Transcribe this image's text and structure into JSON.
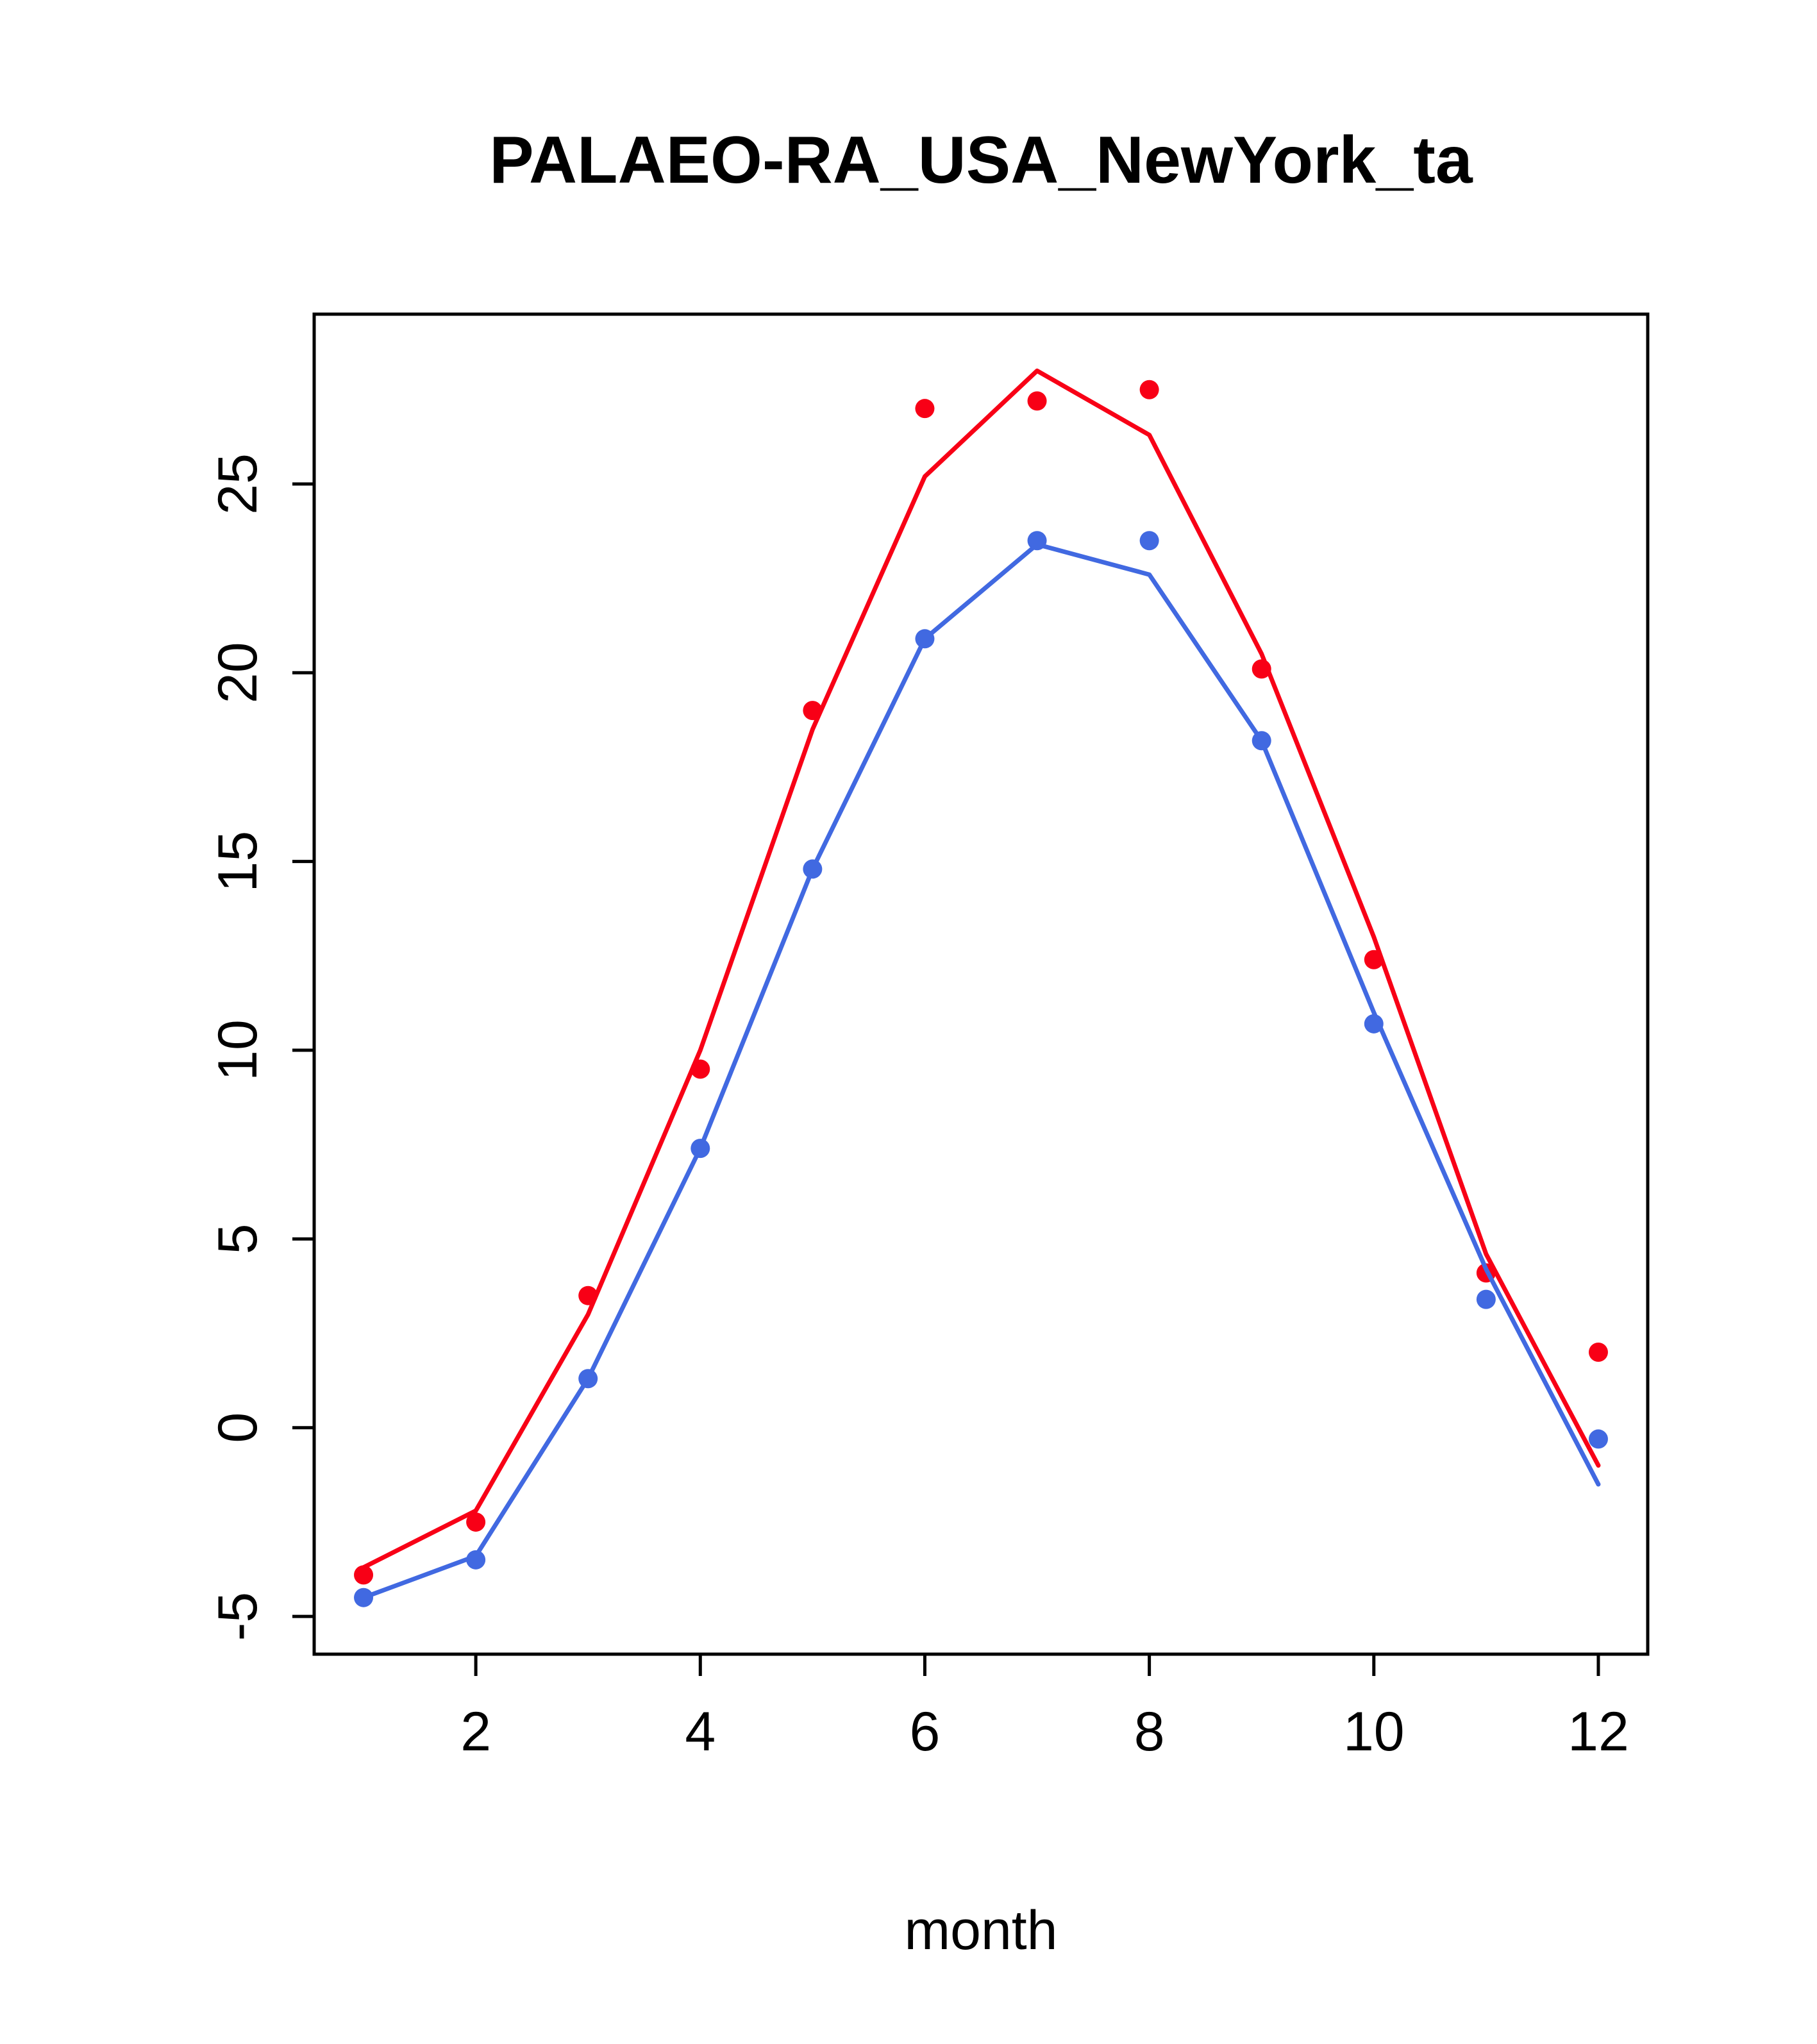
{
  "chart_data": {
    "type": "line",
    "title": "PALAEO-RA_USA_NewYork_ta",
    "xlabel": "month",
    "ylabel": "",
    "x": [
      1,
      2,
      3,
      4,
      5,
      6,
      7,
      8,
      9,
      10,
      11,
      12
    ],
    "xlim": [
      0.56,
      12.44
    ],
    "ylim": [
      -6,
      29.5
    ],
    "xticks": [
      2,
      4,
      6,
      8,
      10,
      12
    ],
    "yticks": [
      -5,
      0,
      5,
      10,
      15,
      20,
      25
    ],
    "grid": false,
    "legend": "none",
    "colors": {
      "red": "#F80016",
      "blue": "#4169E1",
      "axis": "#000000"
    },
    "series": [
      {
        "name": "red-line",
        "kind": "line",
        "color": "#F80016",
        "values": [
          -3.7,
          -2.2,
          3.0,
          10.0,
          18.5,
          25.2,
          28.0,
          26.3,
          20.5,
          13.0,
          4.6,
          -1.0
        ]
      },
      {
        "name": "red-points",
        "kind": "scatter",
        "color": "#F80016",
        "values": [
          -3.9,
          -2.5,
          3.5,
          9.5,
          19.0,
          27.0,
          27.2,
          27.5,
          20.1,
          12.4,
          4.1,
          2.0
        ]
      },
      {
        "name": "blue-line",
        "kind": "line",
        "color": "#4169E1",
        "values": [
          -4.5,
          -3.4,
          1.3,
          7.4,
          14.8,
          20.9,
          23.4,
          22.6,
          18.2,
          11.0,
          4.2,
          -1.5
        ]
      },
      {
        "name": "blue-points",
        "kind": "scatter",
        "color": "#4169E1",
        "values": [
          -4.5,
          -3.5,
          1.3,
          7.4,
          14.8,
          20.9,
          23.5,
          23.5,
          18.2,
          10.7,
          3.4,
          -0.3
        ]
      }
    ]
  }
}
